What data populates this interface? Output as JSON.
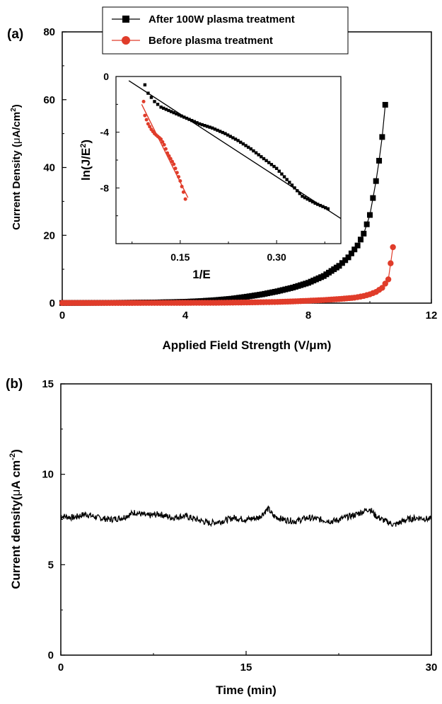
{
  "chart_data": [
    {
      "panel_label": "(a)",
      "type": "line",
      "xlabel": "Applied Field Strength (V/μm)",
      "ylabel_main": "Current Density (",
      "ylabel_mu": "μ",
      "ylabel_unit": "A/cm",
      "ylabel_sup": "2",
      "ylabel_close": ")",
      "xlim": [
        0,
        12
      ],
      "ylim": [
        0,
        80
      ],
      "x_ticks": [
        0,
        4,
        8,
        12
      ],
      "y_ticks": [
        0,
        20,
        40,
        60,
        80
      ],
      "legend_position": "top-center",
      "series": [
        {
          "name": "After 100W plasma treatment",
          "color": "#000000",
          "marker": "square",
          "points": [
            [
              0,
              0.05
            ],
            [
              1,
              0.08
            ],
            [
              2,
              0.12
            ],
            [
              3,
              0.2
            ],
            [
              4,
              0.4
            ],
            [
              4.5,
              0.6
            ],
            [
              5,
              0.9
            ],
            [
              5.5,
              1.3
            ],
            [
              6,
              1.9
            ],
            [
              6.5,
              2.6
            ],
            [
              7,
              3.5
            ],
            [
              7.5,
              4.6
            ],
            [
              8,
              6.0
            ],
            [
              8.5,
              8.0
            ],
            [
              9,
              11.0
            ],
            [
              9.3,
              13.5
            ],
            [
              9.6,
              17.0
            ],
            [
              9.8,
              20.5
            ],
            [
              10,
              26.0
            ],
            [
              10.1,
              31.0
            ],
            [
              10.2,
              36.0
            ],
            [
              10.3,
              42.0
            ],
            [
              10.4,
              49.0
            ],
            [
              10.5,
              58.5
            ]
          ]
        },
        {
          "name": "Before plasma treatment",
          "color": "#e03c2a",
          "marker": "circle",
          "points": [
            [
              0,
              0.05
            ],
            [
              2,
              0.05
            ],
            [
              4,
              0.08
            ],
            [
              5,
              0.1
            ],
            [
              6,
              0.2
            ],
            [
              7,
              0.35
            ],
            [
              7.5,
              0.5
            ],
            [
              8,
              0.7
            ],
            [
              8.5,
              0.9
            ],
            [
              9,
              1.2
            ],
            [
              9.5,
              1.6
            ],
            [
              9.8,
              2.1
            ],
            [
              10,
              2.6
            ],
            [
              10.2,
              3.3
            ],
            [
              10.4,
              4.5
            ],
            [
              10.6,
              7.0
            ],
            [
              10.75,
              16.5
            ]
          ]
        }
      ],
      "inset": {
        "xlabel": "1/E",
        "ylabel_main": "ln(J/E",
        "ylabel_sup": "2",
        "ylabel_close": ")",
        "xlim": [
          0.05,
          0.4
        ],
        "ylim": [
          -12,
          0
        ],
        "x_ticks": [
          0.15,
          0.3
        ],
        "x_tick_labels": [
          "0.15",
          "0.30"
        ],
        "y_ticks": [
          0,
          -4,
          -8
        ],
        "y_tick_labels": [
          "0",
          "-4",
          "-8"
        ],
        "series": [
          {
            "color": "#000000",
            "marker": "square",
            "points": [
              [
                0.095,
                -0.6
              ],
              [
                0.1,
                -1.2
              ],
              [
                0.11,
                -1.8
              ],
              [
                0.12,
                -2.2
              ],
              [
                0.14,
                -2.6
              ],
              [
                0.16,
                -3.0
              ],
              [
                0.18,
                -3.4
              ],
              [
                0.2,
                -3.7
              ],
              [
                0.22,
                -4.1
              ],
              [
                0.24,
                -4.6
              ],
              [
                0.26,
                -5.2
              ],
              [
                0.28,
                -5.9
              ],
              [
                0.3,
                -6.6
              ],
              [
                0.32,
                -7.6
              ],
              [
                0.34,
                -8.6
              ],
              [
                0.36,
                -9.1
              ],
              [
                0.38,
                -9.5
              ]
            ],
            "fit": [
              [
                0.07,
                -0.3
              ],
              [
                0.4,
                -10.2
              ]
            ]
          },
          {
            "color": "#e03c2a",
            "marker": "circle",
            "points": [
              [
                0.093,
                -1.8
              ],
              [
                0.095,
                -2.8
              ],
              [
                0.1,
                -3.4
              ],
              [
                0.105,
                -3.8
              ],
              [
                0.11,
                -4.1
              ],
              [
                0.12,
                -4.5
              ],
              [
                0.125,
                -4.9
              ],
              [
                0.13,
                -5.5
              ],
              [
                0.14,
                -6.3
              ],
              [
                0.15,
                -7.5
              ],
              [
                0.155,
                -8.3
              ],
              [
                0.158,
                -8.8
              ]
            ],
            "fit": [
              [
                0.09,
                -2.0
              ],
              [
                0.162,
                -8.7
              ]
            ]
          }
        ]
      }
    },
    {
      "panel_label": "(b)",
      "type": "line",
      "xlabel": "Time (min)",
      "ylabel_main": "Current density(",
      "ylabel_mu": "μ",
      "ylabel_unit": "A cm",
      "ylabel_sup": "-2",
      "ylabel_close": ")",
      "xlim": [
        0,
        30
      ],
      "ylim": [
        0,
        15
      ],
      "x_ticks": [
        0,
        15,
        30
      ],
      "y_ticks": [
        0,
        5,
        10,
        15
      ],
      "series": [
        {
          "color": "#000000",
          "mean": 7.6,
          "points": [
            [
              0,
              7.7
            ],
            [
              1,
              7.6
            ],
            [
              2,
              7.8
            ],
            [
              3,
              7.6
            ],
            [
              4,
              7.5
            ],
            [
              5,
              7.6
            ],
            [
              6,
              7.9
            ],
            [
              7,
              7.7
            ],
            [
              8,
              7.8
            ],
            [
              9,
              7.6
            ],
            [
              10,
              7.7
            ],
            [
              11,
              7.5
            ],
            [
              12,
              7.3
            ],
            [
              13,
              7.4
            ],
            [
              14,
              7.6
            ],
            [
              15,
              7.5
            ],
            [
              16,
              7.6
            ],
            [
              16.8,
              8.1
            ],
            [
              17.2,
              7.7
            ],
            [
              18,
              7.5
            ],
            [
              19,
              7.4
            ],
            [
              20,
              7.6
            ],
            [
              21,
              7.5
            ],
            [
              22,
              7.4
            ],
            [
              23,
              7.6
            ],
            [
              24,
              7.8
            ],
            [
              25,
              8.1
            ],
            [
              25.5,
              7.7
            ],
            [
              26,
              7.5
            ],
            [
              27,
              7.2
            ],
            [
              28,
              7.5
            ],
            [
              29,
              7.6
            ],
            [
              30,
              7.5
            ]
          ]
        }
      ]
    }
  ]
}
